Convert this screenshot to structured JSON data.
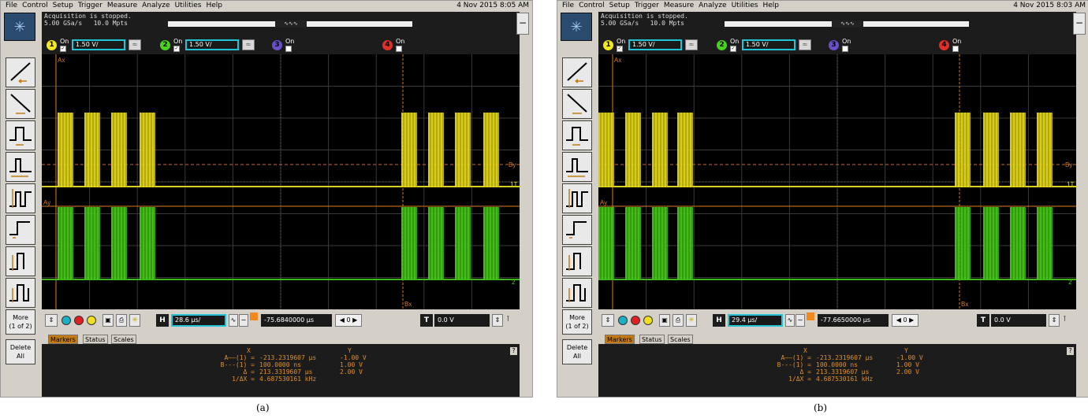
{
  "panels": [
    {
      "caption": "(a)",
      "menu": [
        "File",
        "Control",
        "Setup",
        "Trigger",
        "Measure",
        "Analyze",
        "Utilities",
        "Help"
      ],
      "datetime": "4 Nov 2015  8:05 AM",
      "acquisition_status": "Acquisition is stopped.",
      "sample_rate": "5.00 GSa/s   10.0 Mpts",
      "channels": [
        {
          "num": "1",
          "on_label": "On",
          "checked": true,
          "scale": "1.50 V/",
          "color": "#f3ea1c"
        },
        {
          "num": "2",
          "on_label": "On",
          "checked": true,
          "scale": "1.50 V/",
          "color": "#49d21c"
        },
        {
          "num": "3",
          "on_label": "On",
          "checked": false,
          "scale": "",
          "color": "#6a4fc9"
        },
        {
          "num": "4",
          "on_label": "On",
          "checked": false,
          "scale": "",
          "color": "#e0302a"
        }
      ],
      "timebase": "28.6 µs/",
      "delay": "-75.6840000 µs",
      "delay_stepper": "0",
      "trigger_level": "0.0 V",
      "more_label": "More",
      "more_sub": "(1 of 2)",
      "delete_label": "Delete",
      "delete_sub": "All",
      "tabs": [
        "Markers",
        "Status",
        "Scales"
      ],
      "markers": {
        "col_x": "X",
        "col_y": "Y",
        "rows": [
          {
            "label": "A——(1) =",
            "x": "-213.2319607 µs",
            "y": "-1.00 V"
          },
          {
            "label": "B---(1) =",
            "x": "100.0000 ns",
            "y": "1.00 V"
          },
          {
            "label": "Δ =",
            "x": "213.3319607 µs",
            "y": "2.00 V"
          },
          {
            "label": "1/ΔX =",
            "x": "4.687530161 kHz",
            "y": ""
          }
        ]
      },
      "scope_labels": {
        "ax": "Ax",
        "ay": "Ay",
        "by": "By",
        "bx": "Bx",
        "ch1": "1T",
        "ch2": "2"
      },
      "burst_layout": "a"
    },
    {
      "caption": "(b)",
      "menu": [
        "File",
        "Control",
        "Setup",
        "Trigger",
        "Measure",
        "Analyze",
        "Utilities",
        "Help"
      ],
      "datetime": "4 Nov 2015  8:03 AM",
      "acquisition_status": "Acquisition is stopped.",
      "sample_rate": "5.00 GSa/s   10.0 Mpts",
      "channels": [
        {
          "num": "1",
          "on_label": "On",
          "checked": true,
          "scale": "1.50 V/",
          "color": "#f3ea1c"
        },
        {
          "num": "2",
          "on_label": "On",
          "checked": true,
          "scale": "1.50 V/",
          "color": "#49d21c"
        },
        {
          "num": "3",
          "on_label": "On",
          "checked": false,
          "scale": "",
          "color": "#6a4fc9"
        },
        {
          "num": "4",
          "on_label": "On",
          "checked": false,
          "scale": "",
          "color": "#e0302a"
        }
      ],
      "timebase": "29.4 µs/",
      "delay": "-77.6650000 µs",
      "delay_stepper": "0",
      "trigger_level": "0.0 V",
      "more_label": "More",
      "more_sub": "(1 of 2)",
      "delete_label": "Delete",
      "delete_sub": "All",
      "tabs": [
        "Markers",
        "Status",
        "Scales"
      ],
      "markers": {
        "col_x": "X",
        "col_y": "Y",
        "rows": [
          {
            "label": "A——(1) =",
            "x": "-213.2319607 µs",
            "y": "-1.00 V"
          },
          {
            "label": "B---(1) =",
            "x": "100.0000 ns",
            "y": "1.00 V"
          },
          {
            "label": "Δ =",
            "x": "213.3319607 µs",
            "y": "2.00 V"
          },
          {
            "label": "1/ΔX =",
            "x": "4.687530161 kHz",
            "y": ""
          }
        ]
      },
      "scope_labels": {
        "ax": "Ax",
        "ay": "Ay",
        "by": "By",
        "bx": "Bx",
        "ch1": "1T",
        "ch2": "2"
      },
      "burst_layout": "b"
    }
  ]
}
